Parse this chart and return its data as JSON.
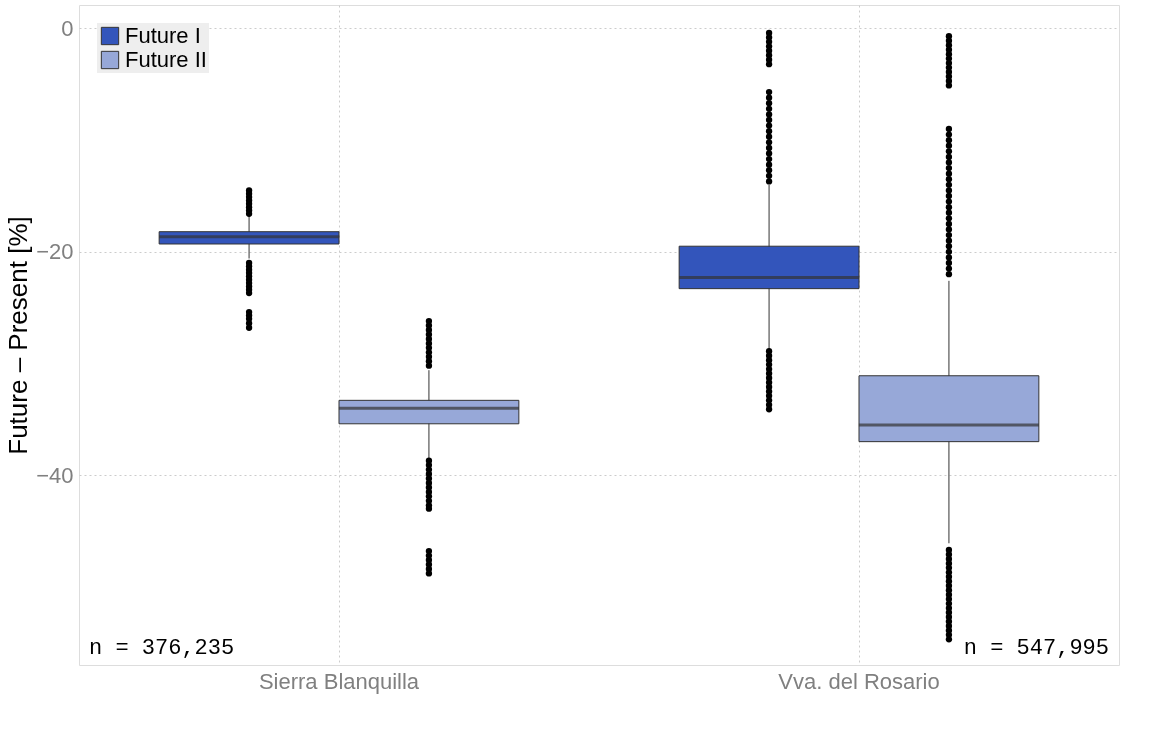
{
  "chart_data": {
    "type": "box",
    "ylabel": "Future – Present [%]",
    "categories": [
      "Sierra Blanquilla",
      "Vva. del Rosario"
    ],
    "series": [
      {
        "name": "Future I",
        "color": "#3355bb",
        "boxes": [
          {
            "low": -20.6,
            "q1": -19.3,
            "median": -18.65,
            "q3": -18.2,
            "high": -16.8,
            "outliers": [
              -14.5,
              -14.8,
              -15.1,
              -15.4,
              -15.7,
              -16.0,
              -16.3,
              -16.6,
              -21.0,
              -21.3,
              -21.6,
              -21.9,
              -22.2,
              -22.5,
              -22.8,
              -23.1,
              -23.4,
              -23.7,
              -25.4,
              -25.7,
              -26.0,
              -26.4,
              -26.8
            ]
          },
          {
            "low": -28.7,
            "q1": -23.3,
            "median": -22.3,
            "q3": -19.5,
            "high": -14.0,
            "outliers": [
              -0.4,
              -0.8,
              -1.2,
              -1.6,
              -2.0,
              -2.4,
              -2.8,
              -3.2,
              -5.7,
              -6.2,
              -6.7,
              -7.2,
              -7.7,
              -8.2,
              -8.7,
              -9.2,
              -9.7,
              -10.2,
              -10.7,
              -11.2,
              -11.7,
              -12.2,
              -12.7,
              -13.2,
              -13.7,
              -28.9,
              -29.3,
              -29.7,
              -30.1,
              -30.5,
              -30.9,
              -31.3,
              -31.7,
              -32.1,
              -32.5,
              -32.9,
              -33.3,
              -33.7,
              -34.1
            ]
          }
        ]
      },
      {
        "name": "Future II",
        "color": "#97a8d8",
        "boxes": [
          {
            "low": -38.5,
            "q1": -35.4,
            "median": -34.0,
            "q3": -33.3,
            "high": -30.6,
            "outliers": [
              -26.2,
              -26.6,
              -27.0,
              -27.4,
              -27.8,
              -28.2,
              -28.6,
              -29.0,
              -29.4,
              -29.8,
              -30.2,
              -38.7,
              -39.1,
              -39.5,
              -39.9,
              -40.3,
              -40.7,
              -41.1,
              -41.5,
              -41.9,
              -42.3,
              -42.7,
              -43.0,
              -46.8,
              -47.2,
              -47.6,
              -48.0,
              -48.4,
              -48.8
            ]
          },
          {
            "low": -46.1,
            "q1": -37.0,
            "median": -35.5,
            "q3": -31.1,
            "high": -22.6,
            "outliers": [
              -0.7,
              -1.1,
              -1.5,
              -1.9,
              -2.3,
              -2.7,
              -3.1,
              -3.5,
              -3.9,
              -4.3,
              -4.7,
              -5.1,
              -9.0,
              -9.5,
              -10.0,
              -10.5,
              -11.0,
              -11.5,
              -12.0,
              -12.5,
              -13.0,
              -13.5,
              -14.0,
              -14.5,
              -15.0,
              -15.5,
              -16.0,
              -16.5,
              -17.0,
              -17.5,
              -18.0,
              -18.5,
              -19.0,
              -19.5,
              -20.0,
              -20.5,
              -21.0,
              -21.5,
              -22.0,
              -46.7,
              -47.1,
              -47.5,
              -47.9,
              -48.3,
              -48.7,
              -49.1,
              -49.5,
              -49.9,
              -50.3,
              -50.7,
              -51.1,
              -51.5,
              -51.9,
              -52.3,
              -52.7,
              -53.1,
              -53.5,
              -53.9,
              -54.3,
              -54.7
            ]
          }
        ]
      }
    ],
    "ylim": [
      -57,
      2.1
    ],
    "yticks": [
      0,
      -20,
      -40
    ],
    "grid": true,
    "legend": "top left",
    "annotations": [
      "n = 376,235",
      "n = 547,995"
    ]
  }
}
